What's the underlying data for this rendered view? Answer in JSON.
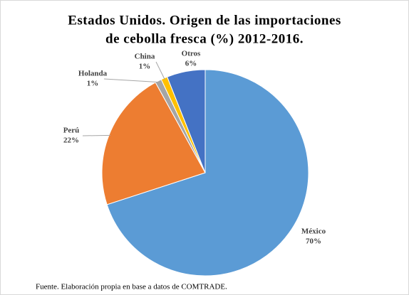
{
  "chart_data": {
    "type": "pie",
    "title": [
      "Estados Unidos. Origen de las importaciones",
      "de cebolla fresca (%) 2012-2016."
    ],
    "categories": [
      "México",
      "Perú",
      "Holanda",
      "China",
      "Otros"
    ],
    "values": [
      70,
      22,
      1,
      1,
      6
    ],
    "value_labels": [
      "70%",
      "22%",
      "1%",
      "1%",
      "6%"
    ],
    "colors": [
      "#5b9bd5",
      "#ed7d31",
      "#a5a5a5",
      "#ffc000",
      "#4472c4"
    ],
    "note": "Fuente. Elaboración propia en base a datos de COMTRADE."
  }
}
